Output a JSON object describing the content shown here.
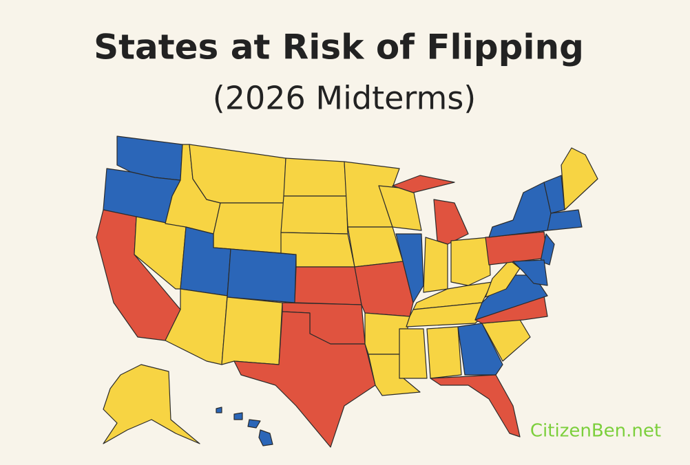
{
  "title": "States at Risk of Flipping",
  "subtitle": "(2026 Midterms)",
  "watermark": "CitizenBen.net"
}
